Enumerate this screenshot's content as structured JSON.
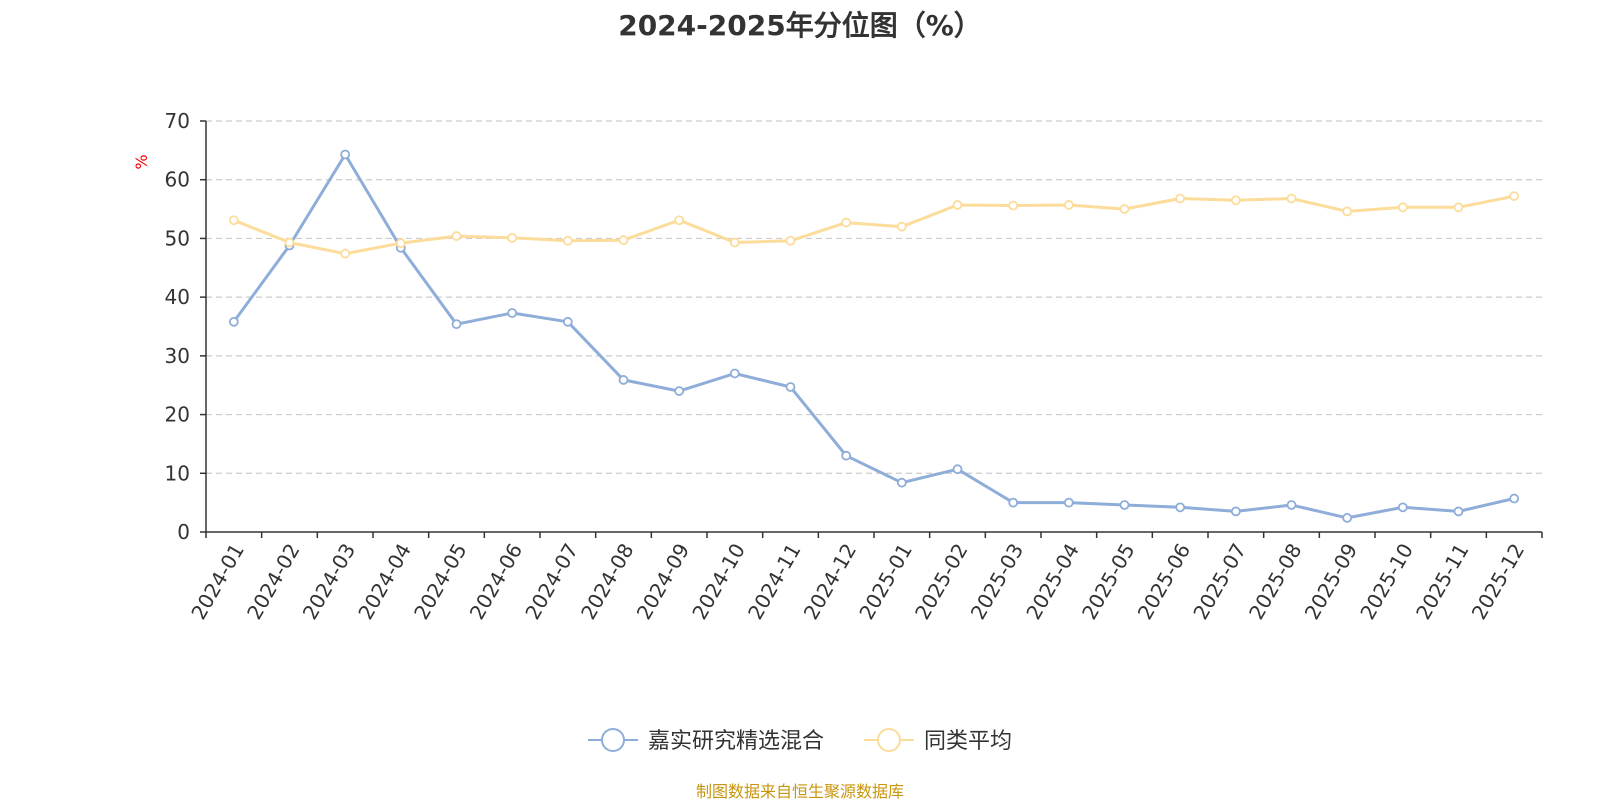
{
  "chart_data": {
    "type": "line",
    "title": "2024-2025年分位图（%）",
    "ylabel": "%",
    "xlabel": "",
    "ylim": [
      0,
      70
    ],
    "yticks": [
      0,
      10,
      20,
      30,
      40,
      50,
      60,
      70
    ],
    "grid": true,
    "legend_position": "bottom-center",
    "categories": [
      "2024-01",
      "2024-02",
      "2024-03",
      "2024-04",
      "2024-05",
      "2024-06",
      "2024-07",
      "2024-08",
      "2024-09",
      "2024-10",
      "2024-11",
      "2024-12",
      "2025-01",
      "2025-02",
      "2025-03",
      "2025-04",
      "2025-05",
      "2025-06",
      "2025-07",
      "2025-08",
      "2025-09",
      "2025-10",
      "2025-11",
      "2025-12"
    ],
    "series": [
      {
        "name": "嘉实研究精选混合",
        "color": "#8eadd9",
        "values": [
          35.8,
          48.8,
          64.3,
          48.4,
          35.4,
          37.3,
          35.8,
          25.9,
          24.0,
          27.0,
          24.7,
          13.0,
          8.4,
          10.7,
          5.0,
          5.0,
          4.6,
          4.2,
          3.5,
          4.6,
          2.4,
          4.2,
          3.5,
          5.7
        ]
      },
      {
        "name": "同类平均",
        "color": "#fcdc9a",
        "values": [
          53.1,
          49.3,
          47.4,
          49.2,
          50.4,
          50.1,
          49.6,
          49.7,
          53.1,
          49.3,
          49.6,
          52.7,
          52.0,
          55.7,
          55.6,
          55.7,
          55.0,
          56.8,
          56.5,
          56.8,
          54.6,
          55.3,
          55.3,
          57.2
        ]
      }
    ]
  },
  "colors": {
    "axis": "#333333",
    "grid": "#cccccc",
    "unit": "#ee0000",
    "source": "#c8950e"
  },
  "footer": {
    "source": "制图数据来自恒生聚源数据库"
  }
}
